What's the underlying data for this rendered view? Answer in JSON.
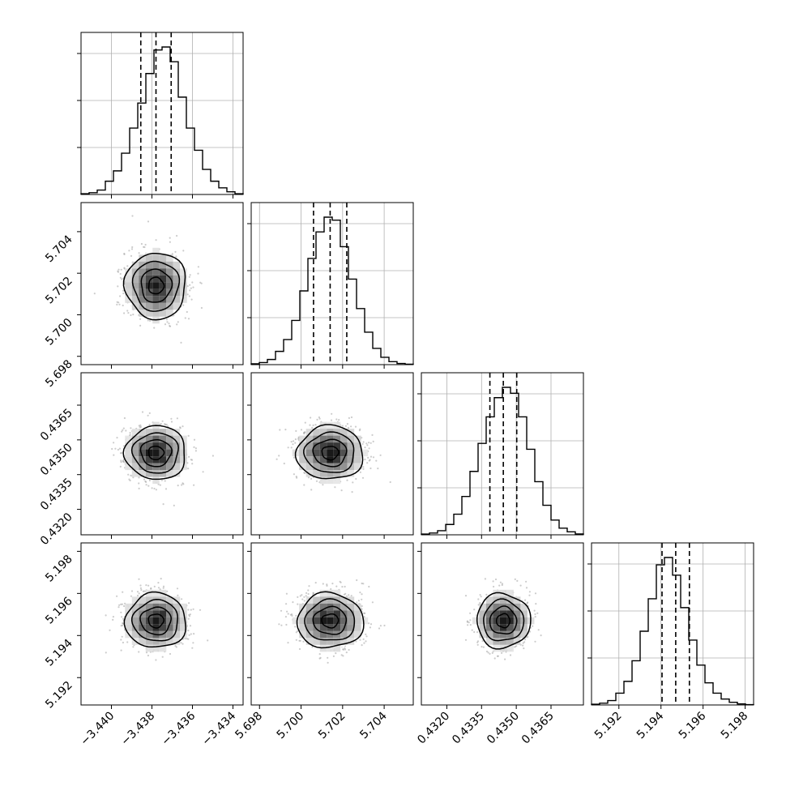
{
  "chart_data": {
    "type": "corner",
    "quantiles": [
      0.16,
      0.5,
      0.84
    ],
    "contour_levels": [
      0.5,
      1.0,
      1.5,
      2.0
    ],
    "histogram_bins": 20,
    "colors": {
      "line": "#000000",
      "grid": "#b0b0b0",
      "scatter": "#9a9a9a",
      "hist2d_dark": "#000000",
      "hist2d_light": "#ffffff"
    },
    "parameters": [
      {
        "mean": -3.4378,
        "std": 0.00075,
        "q16": -3.43855,
        "q50": -3.4378,
        "q84": -3.43705,
        "range": [
          -3.4415,
          -3.4335
        ],
        "ticks": [
          "−3.440",
          "−3.438",
          "−3.436",
          "−3.434"
        ],
        "tick_values": [
          -3.44,
          -3.438,
          -3.436,
          -3.434
        ]
      },
      {
        "mean": 5.7014,
        "std": 0.0008,
        "q16": 5.7006,
        "q50": 5.7014,
        "q84": 5.7022,
        "range": [
          5.6976,
          5.7054
        ],
        "ticks": [
          "5.698",
          "5.700",
          "5.702",
          "5.704"
        ],
        "tick_values": [
          5.698,
          5.7,
          5.702,
          5.704
        ]
      },
      {
        "mean": 0.43444,
        "std": 0.00058,
        "q16": 0.43386,
        "q50": 0.43444,
        "q84": 0.43502,
        "range": [
          0.4309,
          0.4379
        ],
        "ticks": [
          "0.4320",
          "0.4335",
          "0.4350",
          "0.4365"
        ],
        "tick_values": [
          0.432,
          0.4335,
          0.435,
          0.4365
        ]
      },
      {
        "mean": 5.1947,
        "std": 0.00065,
        "q16": 5.19405,
        "q50": 5.1947,
        "q84": 5.19535,
        "range": [
          5.1907,
          5.1984
        ],
        "ticks": [
          "5.192",
          "5.194",
          "5.196",
          "5.198"
        ],
        "tick_values": [
          5.192,
          5.194,
          5.196,
          5.198
        ]
      }
    ],
    "histograms": [
      [
        0.005,
        0.012,
        0.03,
        0.09,
        0.16,
        0.28,
        0.45,
        0.62,
        0.82,
        0.98,
        1.0,
        0.9,
        0.66,
        0.45,
        0.3,
        0.17,
        0.09,
        0.045,
        0.018,
        0.005
      ],
      [
        0.006,
        0.014,
        0.035,
        0.09,
        0.17,
        0.3,
        0.5,
        0.72,
        0.9,
        1.0,
        0.98,
        0.8,
        0.58,
        0.38,
        0.22,
        0.11,
        0.05,
        0.02,
        0.008,
        0.003
      ],
      [
        0.005,
        0.012,
        0.028,
        0.07,
        0.14,
        0.26,
        0.43,
        0.62,
        0.8,
        0.93,
        1.0,
        0.96,
        0.8,
        0.58,
        0.36,
        0.2,
        0.1,
        0.045,
        0.02,
        0.006
      ],
      [
        0.005,
        0.012,
        0.03,
        0.08,
        0.16,
        0.3,
        0.5,
        0.72,
        0.95,
        1.0,
        0.88,
        0.66,
        0.44,
        0.27,
        0.15,
        0.08,
        0.04,
        0.018,
        0.007,
        0.002
      ]
    ]
  }
}
